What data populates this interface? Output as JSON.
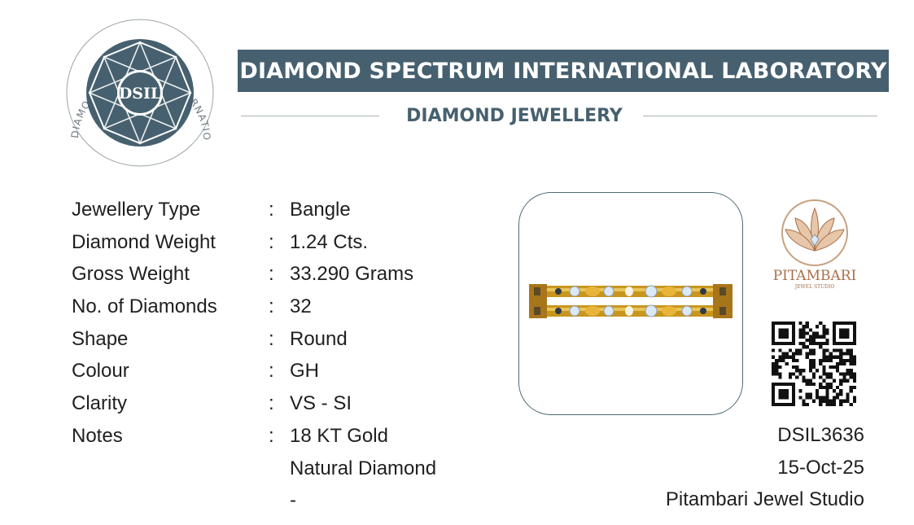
{
  "header": {
    "seal": {
      "center_text": "DSIL",
      "ring_text": "DIAMOND SPECTRUM INTERNATIONAL LABORATORY",
      "colors": {
        "primary": "#46606f",
        "ring": "#6f7a80"
      }
    },
    "title": "DIAMOND SPECTRUM INTERNATIONAL LABORATORY",
    "subtitle": "DIAMOND JEWELLERY",
    "colors": {
      "bar": "#46606f",
      "bar_text": "#ffffff"
    }
  },
  "details": [
    {
      "label": "Jewellery Type",
      "value": "Bangle"
    },
    {
      "label": "Diamond Weight",
      "value": "1.24 Cts."
    },
    {
      "label": "Gross Weight",
      "value": "33.290 Grams"
    },
    {
      "label": "No. of Diamonds",
      "value": "32"
    },
    {
      "label": "Shape",
      "value": "Round"
    },
    {
      "label": "Colour",
      "value": "GH"
    },
    {
      "label": "Clarity",
      "value": "VS - SI"
    },
    {
      "label": "Notes",
      "value": "18  KT Gold"
    },
    {
      "label": "",
      "value": "Natural Diamond"
    },
    {
      "label": "",
      "value": "-"
    }
  ],
  "separator": ":",
  "photo": {
    "subject": "gold-diamond-bangle",
    "colors": {
      "gold": "#d4a525",
      "diamond": "#b9cfe6"
    }
  },
  "brand": {
    "name": "PITAMBARI",
    "tagline": "JEWEL STUDIO",
    "colors": {
      "primary": "#a86f4a"
    }
  },
  "qr_code": {
    "icon": "qr-code-icon"
  },
  "certificate": {
    "number": "DSIL3636",
    "date": "15-Oct-25",
    "issued_to": "Pitambari Jewel Studio"
  }
}
